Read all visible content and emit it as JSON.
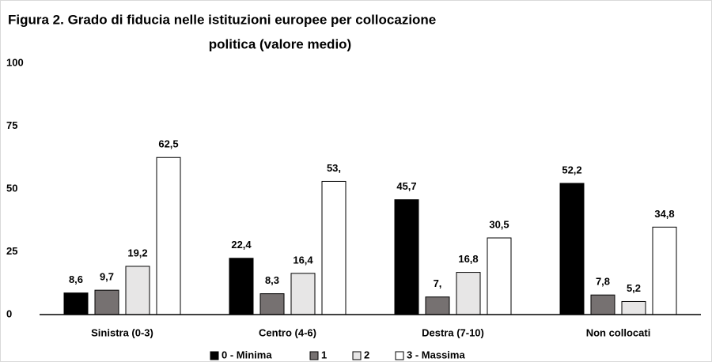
{
  "chart_data": {
    "type": "bar",
    "title": [
      "Figura 2. Grado di fiducia nelle istituzioni europee per collocazione",
      "politica (valore medio)"
    ],
    "categories": [
      "Sinistra (0-3)",
      "Centro (4-6)",
      "Destra (7-10)",
      "Non collocati"
    ],
    "series": [
      {
        "name": "0 - Minima",
        "color": "#000000",
        "values": [
          8.6,
          22.4,
          45.7,
          52.2
        ],
        "value_labels": [
          "8,6",
          "22,4",
          "45,7",
          "52,2"
        ]
      },
      {
        "name": "1",
        "color": "#767171",
        "values": [
          9.7,
          8.3,
          7,
          7.8
        ],
        "value_labels": [
          "9,7",
          "8,3",
          "7,",
          "7,8"
        ]
      },
      {
        "name": "2",
        "color": "#e7e6e6",
        "values": [
          19.2,
          16.4,
          16.8,
          5.2
        ],
        "value_labels": [
          "19,2",
          "16,4",
          "16,8",
          "5,2"
        ]
      },
      {
        "name": "3 - Massima",
        "color": "#ffffff",
        "values": [
          62.5,
          53,
          30.5,
          34.8
        ],
        "value_labels": [
          "62,5",
          "53,",
          "30,5",
          "34,8"
        ]
      }
    ],
    "ylim": [
      0,
      100
    ],
    "yticks": [
      0,
      25,
      50,
      75,
      100
    ],
    "grid": false,
    "legend": "bottom"
  }
}
